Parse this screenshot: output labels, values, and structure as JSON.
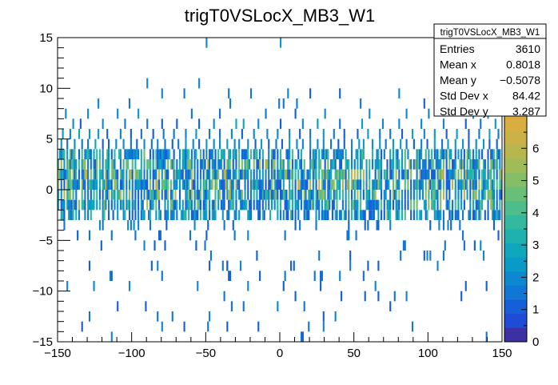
{
  "chart_data": {
    "type": "heatmap",
    "title": "trigT0VSLocX_MB3_W1",
    "xlabel": "",
    "ylabel": "",
    "xlim": [
      -150,
      150
    ],
    "ylim": [
      -15,
      15
    ],
    "x_ticks": [
      -150,
      -100,
      -50,
      0,
      50,
      100,
      150
    ],
    "x_tick_labels": [
      "−150",
      "−100",
      "−50",
      "0",
      "50",
      "100",
      "150"
    ],
    "y_ticks": [
      -15,
      -10,
      -5,
      0,
      5,
      10,
      15
    ],
    "y_tick_labels": [
      "−15",
      "−10",
      "−5",
      "0",
      "5",
      "10",
      "15"
    ],
    "x_bins": 300,
    "y_bins": 30,
    "z_range": [
      0,
      7
    ],
    "z_ticks": [
      0,
      1,
      2,
      3,
      4,
      5,
      6
    ],
    "z_tick_labels": [
      "0",
      "1",
      "2",
      "3",
      "4",
      "5",
      "6"
    ],
    "palette": [
      "#3c30a4",
      "#1f4cd6",
      "#1560d8",
      "#1276d4",
      "#0d88d0",
      "#099ac8",
      "#0ea7bc",
      "#1eb1ae",
      "#34b89e",
      "#4ebd8c",
      "#6abf78",
      "#85be66",
      "#a0bb58",
      "#b8b74e",
      "#cbb248",
      "#d9ad40"
    ],
    "grid": false,
    "legend": "none",
    "stats": {
      "title": "trigT0VSLocX_MB3_W1",
      "rows": [
        {
          "label": "Entries",
          "value": "3610"
        },
        {
          "label": "Mean x",
          "value": "0.8018"
        },
        {
          "label": "Mean y",
          "value": "−0.5078"
        },
        {
          "label": "Std Dev x",
          "value": "84.42"
        },
        {
          "label": "Std Dev y",
          "value": "3.287"
        }
      ]
    },
    "cell_rows": [
      {
        "y": 14,
        "xs": [
          -50,
          0
        ]
      },
      {
        "y": 10,
        "xs": [
          -90,
          -55
        ]
      },
      {
        "y": 9,
        "xs": [
          -80,
          -65,
          -35,
          -20,
          5,
          20,
          40,
          80,
          105,
          115
        ]
      },
      {
        "y": 7,
        "xs": [
          -145,
          -130,
          -110,
          -95,
          -60,
          -40,
          -10,
          10,
          30,
          60,
          85,
          100,
          130,
          140
        ]
      },
      {
        "y": 6,
        "xs": [
          -140,
          -135,
          -120,
          -105,
          -90,
          -80,
          -70,
          -55,
          -45,
          -30,
          -25,
          -15,
          0,
          15,
          25,
          40,
          55,
          70,
          80,
          95,
          110,
          125,
          135,
          145
        ]
      },
      {
        "y": 5,
        "xs": [
          -147,
          -142,
          -136,
          -129,
          -123,
          -117,
          -108,
          -101,
          -94,
          -86,
          -79,
          -71,
          -64,
          -57,
          -48,
          -41,
          -33,
          -26,
          -18,
          -9,
          -2,
          6,
          13,
          21,
          29,
          36,
          44,
          52,
          59,
          67,
          74,
          82,
          89,
          97,
          104,
          112,
          119,
          127,
          134,
          141,
          147
        ]
      },
      {
        "y": 4,
        "xs": [
          -148,
          -144,
          -139,
          -134,
          -130,
          -125,
          -120,
          -116,
          -111,
          -106,
          -101,
          -97,
          -92,
          -87,
          -83,
          -78,
          -73,
          -69,
          -64,
          -59,
          -55,
          -50,
          -45,
          -41,
          -36,
          -31,
          -27,
          -22,
          -17,
          -13,
          -8,
          -3,
          1,
          6,
          11,
          15,
          20,
          25,
          29,
          34,
          39,
          43,
          48,
          53,
          57,
          62,
          67,
          71,
          76,
          81,
          85,
          90,
          95,
          99,
          104,
          109,
          113,
          118,
          123,
          127,
          132,
          137,
          141,
          146
        ]
      }
    ]
  }
}
